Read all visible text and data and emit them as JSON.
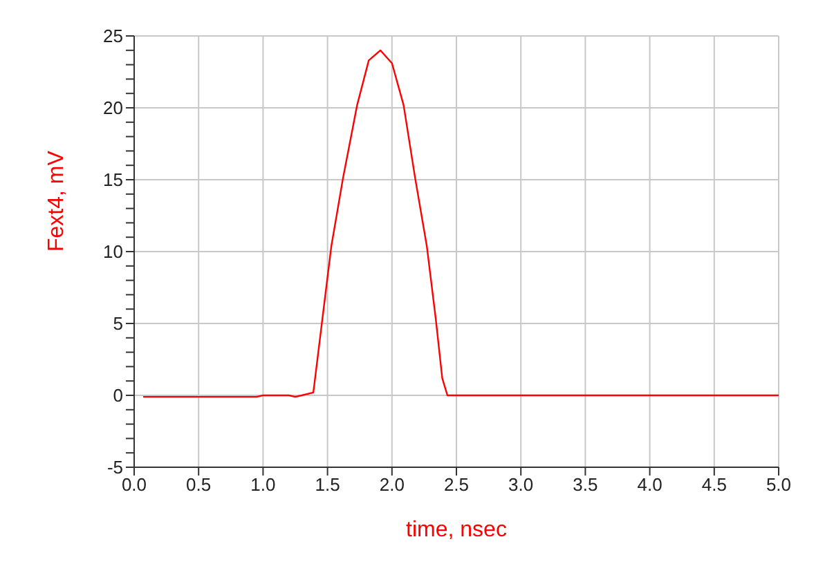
{
  "chart_data": {
    "type": "line",
    "xlabel": "time, nsec",
    "ylabel": "Fext4, mV",
    "x": [
      0.07,
      0.5,
      0.95,
      1.0,
      1.2,
      1.25,
      1.3,
      1.39,
      1.46,
      1.53,
      1.62,
      1.73,
      1.82,
      1.91,
      2.0,
      2.09,
      2.18,
      2.27,
      2.34,
      2.39,
      2.43,
      3.0,
      4.0,
      5.0
    ],
    "series": [
      {
        "color": "#ff0000",
        "values": [
          -0.1,
          -0.1,
          -0.1,
          0,
          0,
          -0.1,
          0,
          0.2,
          5.3,
          10.4,
          15.1,
          20.2,
          23.3,
          24.0,
          23.1,
          20.2,
          15.1,
          10.4,
          5.3,
          1.2,
          0,
          0,
          0,
          0
        ]
      }
    ],
    "xlim": [
      0,
      5
    ],
    "xticks": [
      {
        "value": 0,
        "label": "0.0"
      },
      {
        "value": 0.5,
        "label": "0.5"
      },
      {
        "value": 1,
        "label": "1.0"
      },
      {
        "value": 1.5,
        "label": "1.5"
      },
      {
        "value": 2,
        "label": "2.0"
      },
      {
        "value": 2.5,
        "label": "2.5"
      },
      {
        "value": 3,
        "label": "3.0"
      },
      {
        "value": 3.5,
        "label": "3.5"
      },
      {
        "value": 4,
        "label": "4.0"
      },
      {
        "value": 4.5,
        "label": "4.5"
      },
      {
        "value": 5,
        "label": "5.0"
      }
    ],
    "ylim": [
      -5,
      25
    ],
    "yticks": [
      -5,
      {
        "value": -4,
        "label": null
      },
      {
        "value": -3,
        "label": null
      },
      {
        "value": -2,
        "label": null
      },
      {
        "value": -1,
        "label": null
      },
      0,
      {
        "value": 1,
        "label": null
      },
      {
        "value": 2,
        "label": null
      },
      {
        "value": 3,
        "label": null
      },
      {
        "value": 4,
        "label": null
      },
      5,
      {
        "value": 6,
        "label": null
      },
      {
        "value": 7,
        "label": null
      },
      {
        "value": 8,
        "label": null
      },
      {
        "value": 9,
        "label": null
      },
      10,
      {
        "value": 11,
        "label": null
      },
      {
        "value": 12,
        "label": null
      },
      {
        "value": 13,
        "label": null
      },
      {
        "value": 14,
        "label": null
      },
      15,
      {
        "value": 16,
        "label": null
      },
      {
        "value": 17,
        "label": null
      },
      {
        "value": 18,
        "label": null
      },
      {
        "value": 19,
        "label": null
      },
      20,
      {
        "value": 21,
        "label": null
      },
      {
        "value": 22,
        "label": null
      },
      {
        "value": 23,
        "label": null
      },
      {
        "value": 24,
        "label": null
      },
      25
    ],
    "grid": true,
    "legend": false,
    "marker": "none",
    "line_style": "solid"
  }
}
